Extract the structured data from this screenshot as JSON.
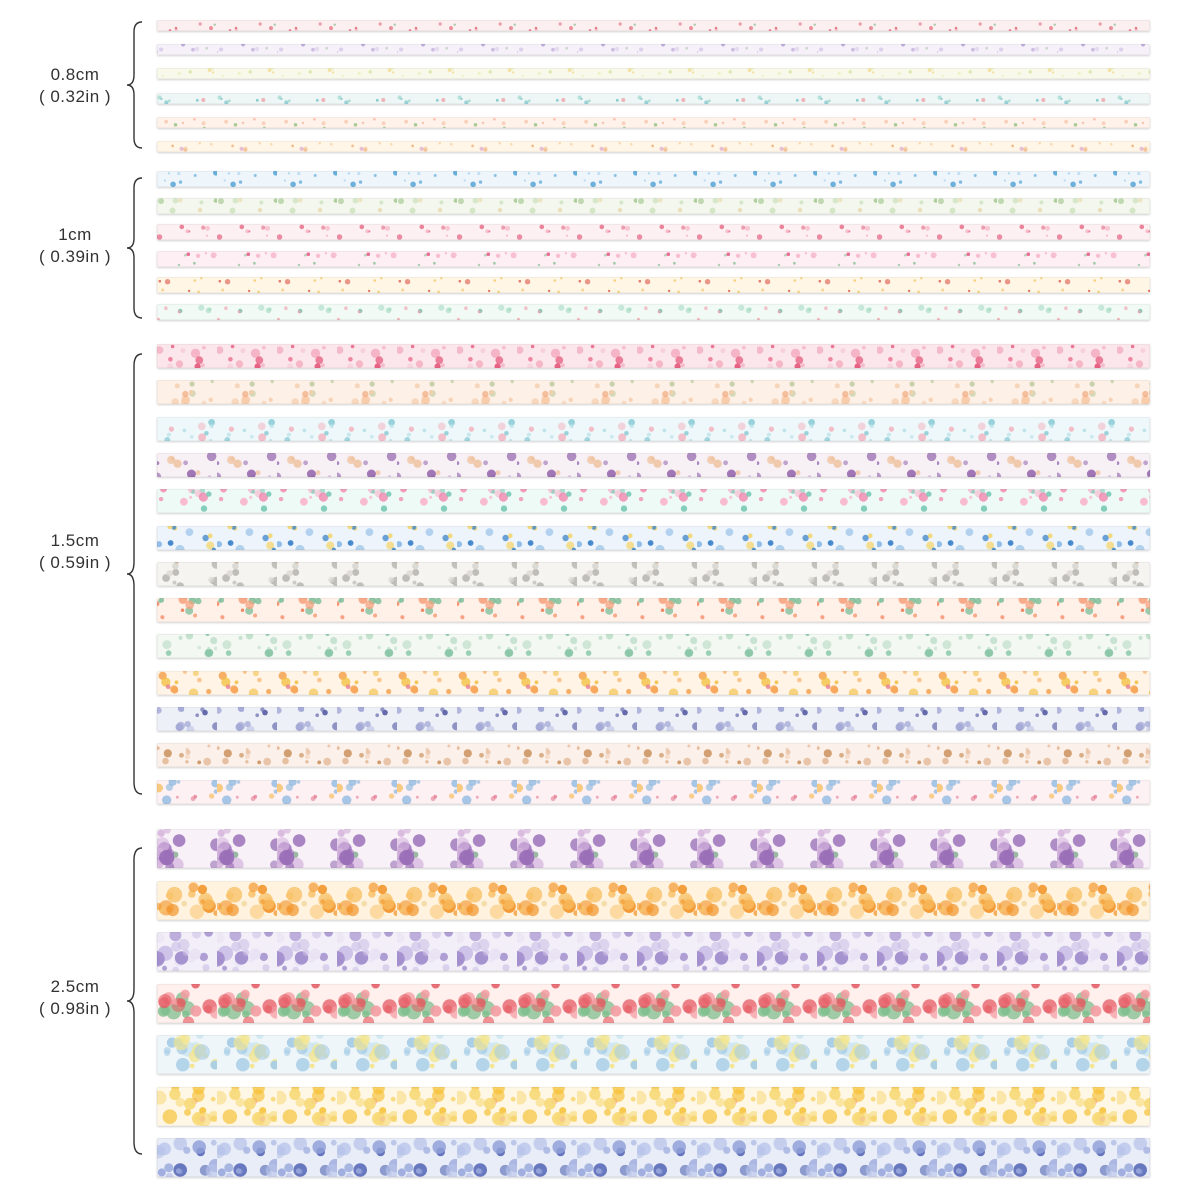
{
  "groups": [
    {
      "width_label": "0.8cm",
      "inch_label": "( 0.32in )",
      "tapes": [
        {
          "palette": [
            "#fbeff0",
            "#e05a6a",
            "#f3a7b2",
            "#9fc9a6"
          ]
        },
        {
          "palette": [
            "#f6f1f8",
            "#b7a2d6",
            "#d6c9ea",
            "#a9c4a8"
          ]
        },
        {
          "palette": [
            "#f8f9ea",
            "#cfe08f",
            "#e8edb6",
            "#f2d37a"
          ]
        },
        {
          "palette": [
            "#eef7f6",
            "#5fb8c1",
            "#9dd6cc",
            "#f0a0a8"
          ]
        },
        {
          "palette": [
            "#fff2ea",
            "#f29a7a",
            "#f7c2a6",
            "#9fc58f"
          ]
        },
        {
          "palette": [
            "#fff6e8",
            "#f3b27c",
            "#f6d3a9",
            "#d9a0c8"
          ]
        }
      ]
    },
    {
      "width_label": "1cm",
      "inch_label": "( 0.39in )",
      "tapes": [
        {
          "palette": [
            "#eef6fb",
            "#5aa6d8",
            "#9fcbea",
            "#f2c9d8"
          ]
        },
        {
          "palette": [
            "#f3f7ee",
            "#9fc58a",
            "#cfe3bf",
            "#e9d7a8"
          ]
        },
        {
          "palette": [
            "#fdf0f2",
            "#e46b87",
            "#f4a8b9",
            "#f2c46a"
          ]
        },
        {
          "palette": [
            "#fdeff3",
            "#e45f89",
            "#f6b0c6",
            "#8fc39a"
          ]
        },
        {
          "palette": [
            "#fff6e6",
            "#f0a53a",
            "#f4cf7a",
            "#e36c5d"
          ]
        },
        {
          "palette": [
            "#f1faf5",
            "#57b89a",
            "#a8dcc4",
            "#f4a3b1"
          ]
        }
      ]
    },
    {
      "width_label": "1.5cm",
      "inch_label": "( 0.59in )",
      "tapes": [
        {
          "palette": [
            "#fbe6ec",
            "#e5577a",
            "#f2a0b5",
            "#f7c9d4"
          ]
        },
        {
          "palette": [
            "#fdf0e6",
            "#f0a070",
            "#f6caa8",
            "#b9c89a"
          ]
        },
        {
          "palette": [
            "#eef7f9",
            "#7ec7d4",
            "#b2dfe6",
            "#f2b8c4"
          ]
        },
        {
          "palette": [
            "#f7f0f5",
            "#9b6fb0",
            "#d3b7dc",
            "#f0c3a0"
          ]
        },
        {
          "palette": [
            "#eefaf6",
            "#f27aa6",
            "#f9b6cd",
            "#7ccab8"
          ]
        },
        {
          "palette": [
            "#eef4fb",
            "#3f86c9",
            "#8cbbe6",
            "#f2d25e"
          ]
        },
        {
          "palette": [
            "#f5f4f1",
            "#b8b6b0",
            "#dad8d2",
            "#c9a98a"
          ]
        },
        {
          "palette": [
            "#fff0e8",
            "#ef6a3f",
            "#f5a17c",
            "#7dbf9a"
          ]
        },
        {
          "palette": [
            "#f3f8f3",
            "#7fc2a0",
            "#c0dfca",
            "#f0b99a"
          ]
        },
        {
          "palette": [
            "#fff4e6",
            "#f3c043",
            "#f6a75a",
            "#e6758a"
          ]
        },
        {
          "palette": [
            "#eef0f7",
            "#5e62a8",
            "#a3a8d6",
            "#c7cbe8"
          ]
        },
        {
          "palette": [
            "#fbf1ea",
            "#c07a3e",
            "#e3b592",
            "#f4d6c2"
          ]
        },
        {
          "palette": [
            "#fdf1f3",
            "#e57a8e",
            "#8ab6e0",
            "#f7c26b"
          ]
        }
      ]
    },
    {
      "width_label": "2.5cm",
      "inch_label": "( 0.98in )",
      "tapes": [
        {
          "palette": [
            "#f8f1f7",
            "#9a6fb8",
            "#d6b6de",
            "#8fb39a"
          ]
        },
        {
          "palette": [
            "#fff3e0",
            "#f39a33",
            "#f8c36b",
            "#f0d9a0"
          ]
        },
        {
          "palette": [
            "#f3eff9",
            "#a08ccc",
            "#cbbfe6",
            "#e7e1f3"
          ]
        },
        {
          "palette": [
            "#fff0ee",
            "#e55a63",
            "#f39aa0",
            "#7fbf8e"
          ]
        },
        {
          "palette": [
            "#eff6fa",
            "#a7cde6",
            "#f4e58a",
            "#cfe6f1"
          ]
        },
        {
          "palette": [
            "#fff7e6",
            "#f5c136",
            "#f8da7a",
            "#f3a2b0"
          ]
        },
        {
          "palette": [
            "#e9edf8",
            "#4f62b3",
            "#8fa0d9",
            "#b9c4ea"
          ]
        }
      ]
    }
  ]
}
